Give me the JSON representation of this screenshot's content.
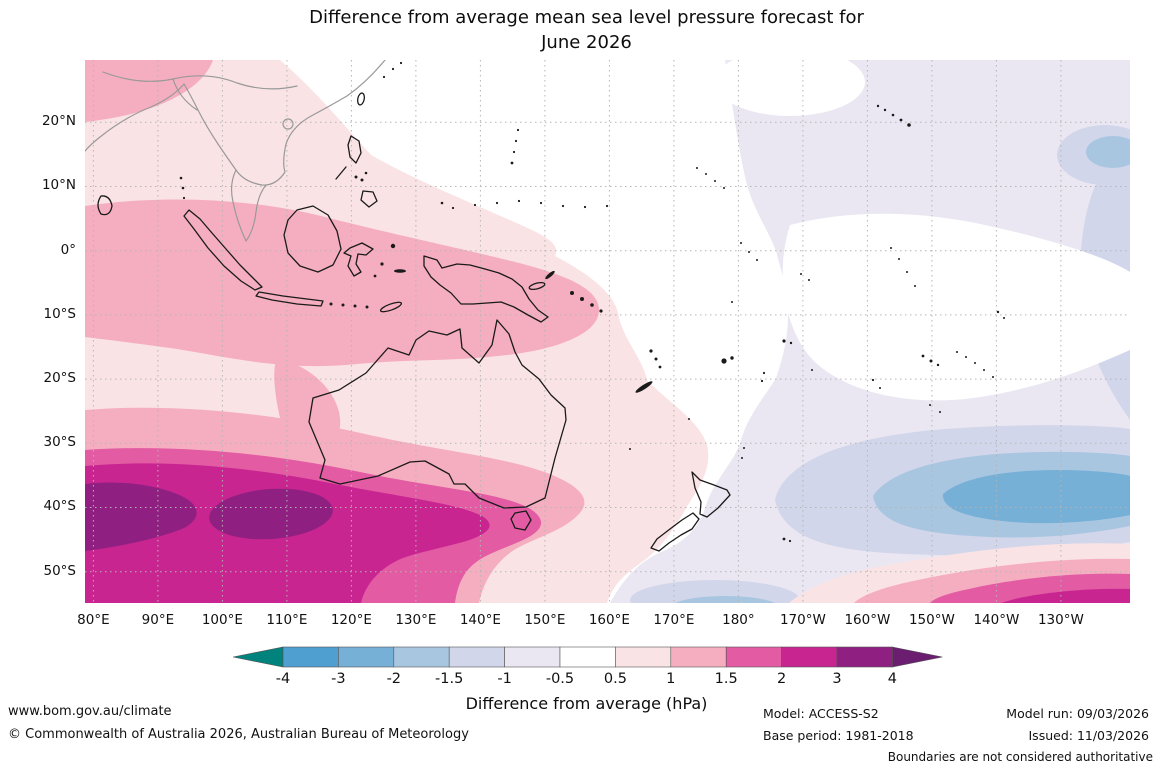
{
  "title": {
    "line1": "Difference from average mean sea level pressure forecast for",
    "line2": "June 2026"
  },
  "map": {
    "x_ticks": [
      {
        "label": "80°E",
        "lon": 80
      },
      {
        "label": "90°E",
        "lon": 90
      },
      {
        "label": "100°E",
        "lon": 100
      },
      {
        "label": "110°E",
        "lon": 110
      },
      {
        "label": "120°E",
        "lon": 120
      },
      {
        "label": "130°E",
        "lon": 130
      },
      {
        "label": "140°E",
        "lon": 140
      },
      {
        "label": "150°E",
        "lon": 150
      },
      {
        "label": "160°E",
        "lon": 160
      },
      {
        "label": "170°E",
        "lon": 170
      },
      {
        "label": "180°",
        "lon": 180
      },
      {
        "label": "170°W",
        "lon": 190
      },
      {
        "label": "160°W",
        "lon": 200
      },
      {
        "label": "150°W",
        "lon": 210
      },
      {
        "label": "140°W",
        "lon": 220
      },
      {
        "label": "130°W",
        "lon": 230
      }
    ],
    "y_ticks": [
      {
        "label": "20°N",
        "lat": 20
      },
      {
        "label": "10°N",
        "lat": 10
      },
      {
        "label": "0°",
        "lat": 0
      },
      {
        "label": "10°S",
        "lat": -10
      },
      {
        "label": "20°S",
        "lat": -20
      },
      {
        "label": "30°S",
        "lat": -30
      },
      {
        "label": "40°S",
        "lat": -40
      },
      {
        "label": "50°S",
        "lat": -50
      }
    ]
  },
  "palette": {
    "pos05": "#fae3e5",
    "pos1": "#f5aec0",
    "pos15": "#e25ba3",
    "pos2": "#c92591",
    "pos3": "#8f2082",
    "neg05": "#eae7f2",
    "neg1": "#d2d6ea",
    "neg15": "#a9c6e1",
    "neg2": "#77b0d7",
    "neg3": "#4f9fd0",
    "white": "#ffffff"
  },
  "colorbar": {
    "label": "Difference from average (hPa)",
    "tick_labels": [
      "-4",
      "-3",
      "-2",
      "-1.5",
      "-1",
      "-0.5",
      "0.5",
      "1",
      "1.5",
      "2",
      "3",
      "4"
    ],
    "colors": [
      "#00827d",
      "#4f9fd0",
      "#77b0d7",
      "#a9c6e1",
      "#d2d6ea",
      "#eae7f2",
      "#ffffff",
      "#fae3e5",
      "#f5aec0",
      "#e25ba3",
      "#c92591",
      "#8f2082",
      "#6b1d70"
    ]
  },
  "footer": {
    "url": "www.bom.gov.au/climate",
    "copyright": "© Commonwealth of Australia 2026, Australian Bureau of Meteorology",
    "model": "Model: ACCESS-S2",
    "base_period": "Base period: 1981-2018",
    "model_run": "Model run: 09/03/2026",
    "issued": "Issued: 11/03/2026",
    "disclaimer": "Boundaries are not considered authoritative"
  },
  "chart_data": {
    "type": "contour_map",
    "title": "Difference from average mean sea level pressure forecast for June 2026",
    "variable": "Mean sea level pressure anomaly",
    "units": "hPa",
    "lon_range": [
      "80°E",
      "130°W"
    ],
    "lat_range": [
      "55°S",
      "30°N"
    ],
    "contour_levels": [
      -4,
      -3,
      -2,
      -1.5,
      -1,
      -0.5,
      0.5,
      1,
      1.5,
      2,
      3,
      4
    ],
    "grid": "10 degree dotted graticule",
    "features": [
      {
        "sign": "positive",
        "value_hpa": "+3 to +4",
        "location": "peak cores near 43°S, 95°E–115°E (southern Indian Ocean)"
      },
      {
        "sign": "positive",
        "value_hpa": "+2 to +3",
        "location": "band 38°S–50°S from 80°E to ~135°E"
      },
      {
        "sign": "positive",
        "value_hpa": "+1.5 to +2",
        "location": "band south of Australia extending to ~150°E"
      },
      {
        "sign": "positive",
        "value_hpa": "+1 to +1.5",
        "location": "Indonesia, New Guinea, northern Australia and tropical east Indian Ocean"
      },
      {
        "sign": "positive",
        "value_hpa": "+0.5 to +1",
        "location": "most of Australia, Indian Ocean sector and Coral Sea"
      },
      {
        "sign": "negative",
        "value_hpa": "-2 to -3",
        "location": "South Pacific centred near 33°S, 150°W"
      },
      {
        "sign": "negative",
        "value_hpa": "-0.5 to -1.5",
        "location": "broad central/eastern South Pacific including New Zealand"
      },
      {
        "sign": "near zero",
        "value_hpa": "-0.5 to +0.5",
        "location": "equatorial central Pacific and western North Pacific"
      },
      {
        "sign": "positive",
        "value_hpa": "+0.5 to +3",
        "location": "stripes along far southeast edge 50°S–55°S, 160°W–120°W"
      }
    ]
  }
}
